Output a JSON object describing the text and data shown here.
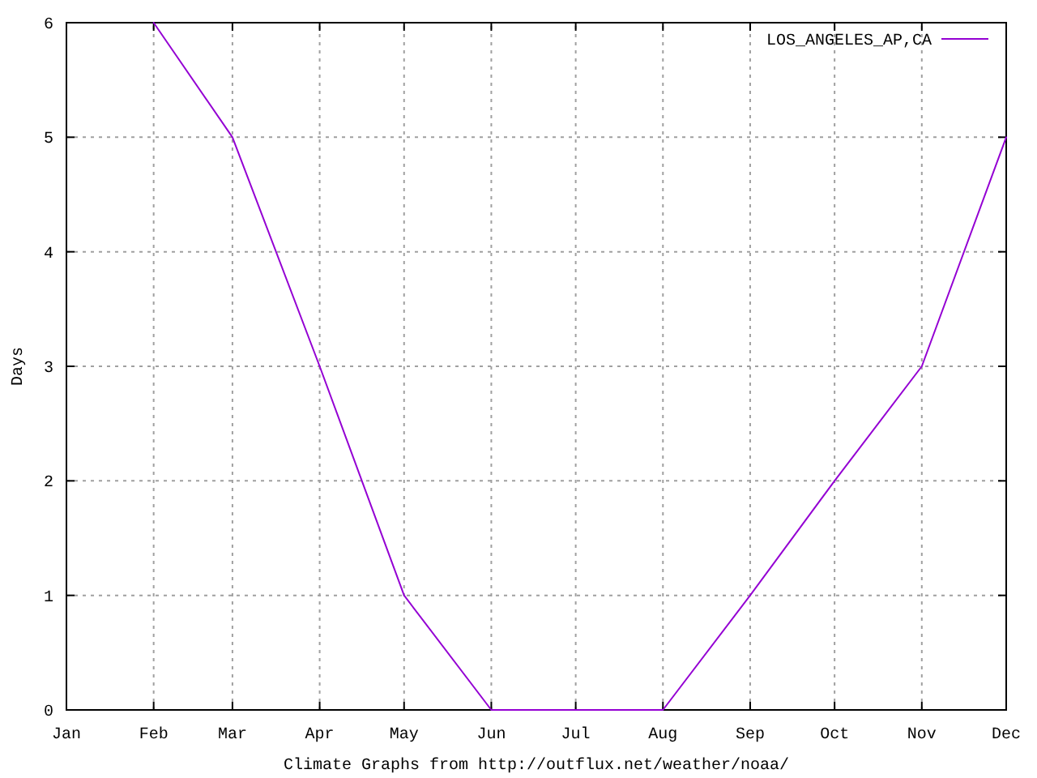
{
  "chart_data": {
    "type": "line",
    "xlabel": "Climate Graphs from http://outflux.net/weather/noaa/",
    "ylabel": "Days",
    "x": [
      "--02-01",
      "--03-01",
      "--04-01",
      "--05-01",
      "--06-01",
      "--07-01",
      "--08-01",
      "--09-01",
      "--10-01",
      "--11-01",
      "--12-01"
    ],
    "series": [
      {
        "name": "LOS_ANGELES_AP,CA",
        "color": "#9400d3",
        "values": [
          6,
          5,
          3,
          1,
          0,
          0,
          0,
          1,
          2,
          3,
          5
        ]
      }
    ],
    "xlim": [
      "--01-01",
      "--12-01"
    ],
    "xticks": [
      {
        "value": "--01-01",
        "label": "Jan"
      },
      {
        "value": "--02-01",
        "label": "Feb"
      },
      {
        "value": "--03-01",
        "label": "Mar"
      },
      {
        "value": "--04-01",
        "label": "Apr"
      },
      {
        "value": "--05-01",
        "label": "May"
      },
      {
        "value": "--06-01",
        "label": "Jun"
      },
      {
        "value": "--07-01",
        "label": "Jul"
      },
      {
        "value": "--08-01",
        "label": "Aug"
      },
      {
        "value": "--09-01",
        "label": "Sep"
      },
      {
        "value": "--10-01",
        "label": "Oct"
      },
      {
        "value": "--11-01",
        "label": "Nov"
      },
      {
        "value": "--12-01",
        "label": "Dec"
      }
    ],
    "ylim": [
      0,
      6
    ],
    "yticks": [
      0,
      1,
      2,
      3,
      4,
      5,
      6
    ],
    "grid": true,
    "legend": "top right"
  }
}
